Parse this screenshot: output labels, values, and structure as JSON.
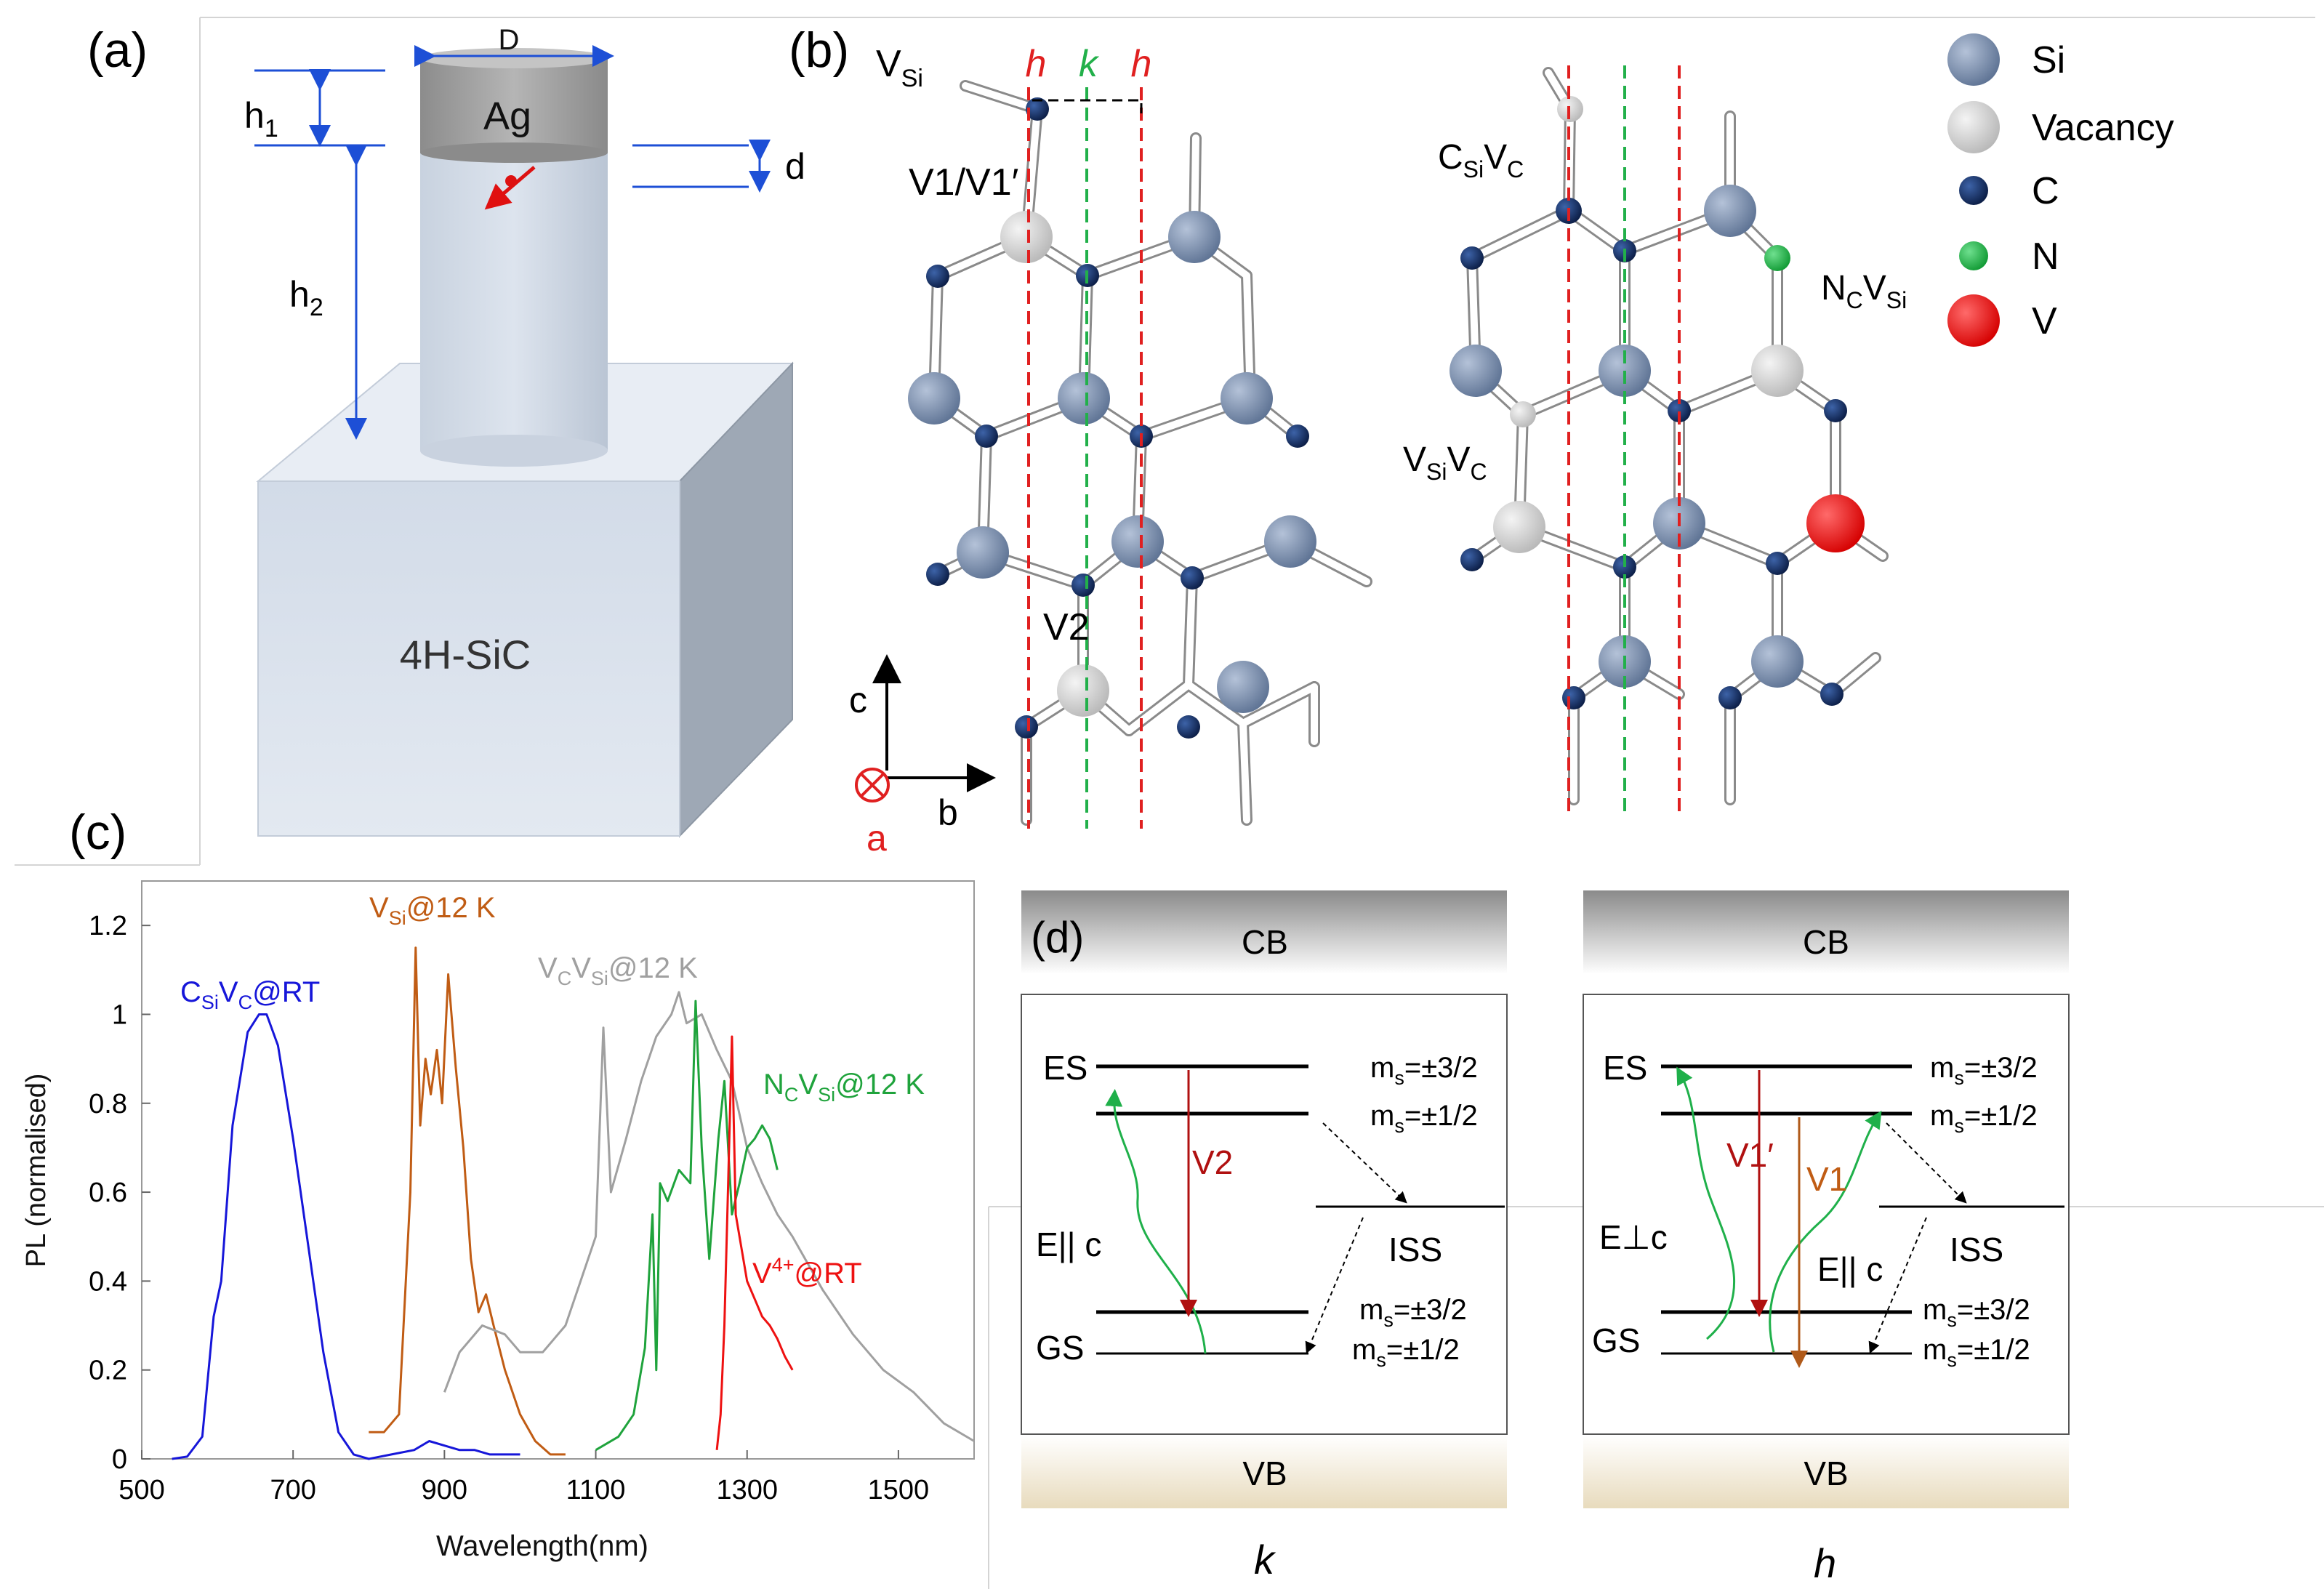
{
  "figure": {
    "panels": {
      "a": "(a)",
      "b": "(b)",
      "c": "(c)",
      "d": "(d)"
    },
    "panel_a": {
      "d_upper": "D",
      "h1_h": "h",
      "h1_sub": "1",
      "h2_h": "h",
      "h2_sub": "2",
      "d_small": "d",
      "cap": "Ag",
      "substrate": "4H-SiC"
    },
    "panel_b": {
      "vsi_main": "V",
      "vsi_sub": "Si",
      "col_h": "h",
      "col_k": "k",
      "v1": "V1/V1′",
      "v2": "V2",
      "csivc": {
        "c": "C",
        "si": "Si",
        "v": "V",
        "c2": "C"
      },
      "vsivc": {
        "v": "V",
        "si": "Si",
        "v2": "V",
        "c": "C"
      },
      "ncvsi": {
        "n": "N",
        "c": "C",
        "v": "V",
        "si": "Si"
      },
      "axes": {
        "c": "c",
        "a": "a",
        "b": "b"
      },
      "legend": [
        {
          "label": "Si",
          "color": "#7f94b4"
        },
        {
          "label": "Vacancy",
          "color": "#d9d9d9"
        },
        {
          "label": "C",
          "color": "#293a56"
        },
        {
          "label": "N",
          "color": "#1fb04a"
        },
        {
          "label": "V",
          "color": "#ee1111"
        }
      ]
    },
    "panel_d": {
      "cb": "CB",
      "vb": "VB",
      "es": "ES",
      "gs": "GS",
      "iss": "ISS",
      "ms_es_high": "m",
      "ms_sub": "s",
      "val_32": "=±3/2",
      "val_12": "=±1/2",
      "epar": "E|| c",
      "eperp": "E⊥c",
      "v2": "V2",
      "v1p": "V1′",
      "v1": "V1",
      "k": "k",
      "h": "h"
    }
  },
  "chart_data": {
    "type": "line",
    "xlabel": "Wavelength(nm)",
    "ylabel": "PL (normalised)",
    "xlim": [
      500,
      1600
    ],
    "ylim": [
      0,
      1.3
    ],
    "xticks": [
      "500",
      "700",
      "900",
      "1100",
      "1300",
      "1500"
    ],
    "yticks": [
      "0",
      "0.2",
      "0.4",
      "0.6",
      "0.8",
      "1",
      "1.2"
    ],
    "series": [
      {
        "name": "CSiVC@RT",
        "color": "#1616d9",
        "x": [
          540,
          560,
          580,
          595,
          605,
          620,
          640,
          655,
          665,
          680,
          700,
          720,
          740,
          760,
          780,
          800,
          830,
          860,
          880,
          900,
          920,
          940,
          960,
          980,
          1000
        ],
        "y": [
          0,
          0.005,
          0.05,
          0.32,
          0.4,
          0.75,
          0.96,
          1.0,
          1.0,
          0.93,
          0.72,
          0.48,
          0.24,
          0.06,
          0.01,
          0.0,
          0.01,
          0.02,
          0.04,
          0.03,
          0.02,
          0.02,
          0.01,
          0.01,
          0.01
        ]
      },
      {
        "name": "VSi@12 K",
        "color": "#c05c14",
        "x": [
          800,
          820,
          840,
          855,
          862,
          868,
          875,
          882,
          890,
          897,
          905,
          915,
          925,
          935,
          945,
          955,
          965,
          980,
          1000,
          1020,
          1040,
          1060
        ],
        "y": [
          0.06,
          0.06,
          0.1,
          0.6,
          1.15,
          0.75,
          0.9,
          0.82,
          0.92,
          0.8,
          1.09,
          0.88,
          0.7,
          0.45,
          0.33,
          0.37,
          0.3,
          0.2,
          0.1,
          0.04,
          0.01,
          0.01
        ]
      },
      {
        "name": "VCVSi@12 K",
        "color": "#a0a0a0",
        "x": [
          900,
          920,
          950,
          980,
          1000,
          1030,
          1060,
          1080,
          1100,
          1110,
          1120,
          1140,
          1160,
          1180,
          1200,
          1210,
          1220,
          1240,
          1260,
          1280,
          1300,
          1320,
          1340,
          1360,
          1400,
          1440,
          1480,
          1520,
          1560,
          1600
        ],
        "y": [
          0.15,
          0.24,
          0.3,
          0.28,
          0.24,
          0.24,
          0.3,
          0.4,
          0.5,
          0.97,
          0.6,
          0.72,
          0.85,
          0.95,
          1.0,
          1.05,
          0.98,
          1.0,
          0.92,
          0.85,
          0.7,
          0.62,
          0.55,
          0.5,
          0.38,
          0.28,
          0.2,
          0.15,
          0.08,
          0.04
        ]
      },
      {
        "name": "NCVSi@12 K",
        "color": "#1fa33c",
        "x": [
          1100,
          1130,
          1150,
          1165,
          1175,
          1180,
          1185,
          1195,
          1210,
          1225,
          1232,
          1240,
          1250,
          1262,
          1270,
          1280,
          1290,
          1300,
          1310,
          1320,
          1330,
          1340
        ],
        "y": [
          0.02,
          0.05,
          0.1,
          0.25,
          0.55,
          0.2,
          0.62,
          0.58,
          0.65,
          0.62,
          1.03,
          0.7,
          0.45,
          0.72,
          0.85,
          0.55,
          0.62,
          0.7,
          0.72,
          0.75,
          0.72,
          0.65
        ]
      },
      {
        "name": "V4+@RT",
        "color": "#ee1111",
        "x": [
          1260,
          1265,
          1270,
          1275,
          1280,
          1285,
          1290,
          1300,
          1310,
          1320,
          1330,
          1340,
          1350,
          1360
        ],
        "y": [
          0.02,
          0.1,
          0.3,
          0.62,
          0.95,
          0.55,
          0.5,
          0.4,
          0.36,
          0.32,
          0.3,
          0.27,
          0.23,
          0.2
        ]
      }
    ],
    "annotations": [
      {
        "main": "C",
        "parts": [
          "C",
          "Si",
          "V",
          "C",
          "@RT"
        ]
      },
      {
        "main": "V",
        "parts": [
          "V",
          "Si",
          "@12 K"
        ]
      },
      {
        "main": "V",
        "parts": [
          "V",
          "C",
          "V",
          "Si",
          "@12 K"
        ]
      },
      {
        "main": "N",
        "parts": [
          "N",
          "C",
          "V",
          "Si",
          "@12 K"
        ]
      },
      {
        "main": "V",
        "parts": [
          "V",
          "4+",
          "@RT"
        ]
      }
    ]
  }
}
